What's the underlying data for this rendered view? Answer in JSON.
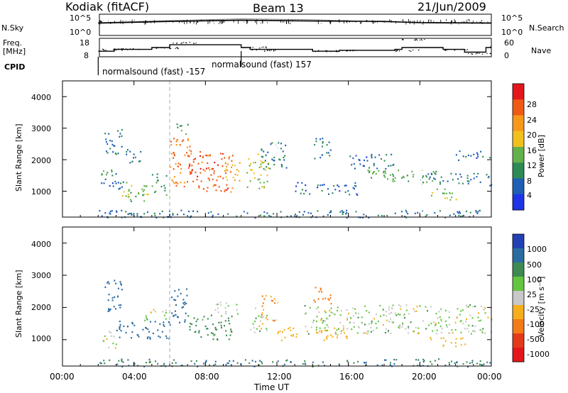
{
  "header": {
    "station": "Kodiak (fitACF)",
    "beam": "Beam 13",
    "date": "21/Jun/2009"
  },
  "summary_panels": {
    "nsky": {
      "label": "N.Sky",
      "ticks": [
        "10^5",
        "10^0"
      ],
      "right_label": "N.Search",
      "right_ticks": [
        "10^5",
        "10^0"
      ]
    },
    "freq": {
      "label_line1": "Freq.",
      "label_line2": "[MHz]",
      "ticks": [
        "18",
        "8"
      ],
      "right_label": "Nave",
      "right_ticks": [
        "60",
        "0"
      ]
    },
    "cpid": {
      "label": "CPID",
      "modes": [
        {
          "name": "normalsound (fast) -157",
          "start_hour": 2.0
        },
        {
          "name": "normalsound (fast) 157",
          "start_hour": 10.0
        }
      ]
    }
  },
  "axes": {
    "x_label": "Time UT",
    "x_ticks": [
      "00:00",
      "04:00",
      "08:00",
      "12:00",
      "16:00",
      "20:00",
      "00:00"
    ],
    "x_range_hours": [
      0,
      24
    ],
    "y_label": "Slant Range [km]",
    "y_ticks": [
      "1000",
      "2000",
      "3000",
      "4000"
    ],
    "y_range_km": [
      180,
      4500
    ],
    "marker_hour": 6.0
  },
  "colorbars": {
    "power": {
      "label": "Power [dB]",
      "ticks": [
        "4",
        "8",
        "12",
        "16",
        "20",
        "24",
        "28"
      ],
      "colors": [
        "#1e34e6",
        "#1e5fb5",
        "#2c8a55",
        "#63b14b",
        "#f2c01c",
        "#f7981a",
        "#f05a14",
        "#e3171b"
      ]
    },
    "velocity": {
      "label": "Velocity [m s⁻¹]",
      "ticks": [
        "1000",
        "500",
        "100",
        "25",
        "-25",
        "-100",
        "-500",
        "-1000"
      ],
      "colors": [
        "#2340b5",
        "#2a6ca2",
        "#3f8a52",
        "#63c640",
        "#c8c8c8",
        "#f6ae1c",
        "#f37b17",
        "#e43a1a",
        "#e3171b"
      ]
    }
  },
  "chart_data": [
    {
      "type": "line",
      "title": "N.Sky / N.Search",
      "x_hours": [
        2.0,
        6.0,
        10.0,
        14.0,
        18.0,
        20.0,
        24.0
      ],
      "nsky_log10": [
        2.9,
        3.3,
        3.6,
        3.4,
        3.3,
        3.0,
        2.9
      ],
      "nsearch_log10": [
        3.0,
        3.5,
        3.9,
        3.7,
        3.2,
        3.1,
        3.0
      ]
    },
    {
      "type": "line",
      "title": "Freq. / Nave",
      "x_hours": [
        2.0,
        2.9,
        5.0,
        6.0,
        10.0,
        10.5,
        14.0,
        15.5,
        18.6,
        19.0,
        21.3,
        22.5,
        23.7,
        24.0
      ],
      "freq_mhz": [
        11,
        12,
        13,
        14.5,
        13,
        12,
        11,
        11.5,
        12,
        13,
        12,
        10.5,
        13,
        13
      ],
      "nave": [
        23,
        25,
        28,
        45,
        30,
        20,
        18,
        20,
        20,
        55,
        22,
        10,
        30,
        30
      ]
    },
    {
      "type": "heatmap",
      "title": "Power [dB]",
      "x_range_hours": [
        2.0,
        24.0
      ],
      "y_range_km": [
        180,
        3500
      ],
      "patches": [
        {
          "t0": 2.0,
          "t1": 24.0,
          "r0": 180,
          "r1": 420,
          "value": 9
        },
        {
          "t0": 2.3,
          "t1": 3.3,
          "r0": 2100,
          "r1": 3000,
          "value": 10
        },
        {
          "t0": 2.1,
          "t1": 3.0,
          "r0": 1500,
          "r1": 1900,
          "value": 12
        },
        {
          "t0": 2.1,
          "t1": 3.5,
          "r0": 1000,
          "r1": 1400,
          "value": 8
        },
        {
          "t0": 3.2,
          "t1": 5.0,
          "r0": 700,
          "r1": 1300,
          "value": 16
        },
        {
          "t0": 5.0,
          "t1": 5.8,
          "r0": 900,
          "r1": 1600,
          "value": 14
        },
        {
          "t0": 3.5,
          "t1": 4.5,
          "r0": 1900,
          "r1": 2400,
          "value": 10
        },
        {
          "t0": 6.0,
          "t1": 7.2,
          "r0": 1100,
          "r1": 2700,
          "value": 26
        },
        {
          "t0": 7.0,
          "t1": 9.5,
          "r0": 1000,
          "r1": 2300,
          "value": 28
        },
        {
          "t0": 9.0,
          "t1": 10.0,
          "r0": 1300,
          "r1": 2000,
          "value": 22
        },
        {
          "t0": 6.3,
          "t1": 7.0,
          "r0": 2800,
          "r1": 3200,
          "value": 14
        },
        {
          "t0": 10.3,
          "t1": 11.5,
          "r0": 1100,
          "r1": 2200,
          "value": 18
        },
        {
          "t0": 11.0,
          "t1": 12.5,
          "r0": 1700,
          "r1": 2600,
          "value": 10
        },
        {
          "t0": 13.0,
          "t1": 16.5,
          "r0": 900,
          "r1": 1300,
          "value": 8
        },
        {
          "t0": 14.0,
          "t1": 15.0,
          "r0": 2000,
          "r1": 2700,
          "value": 10
        },
        {
          "t0": 16.0,
          "t1": 18.5,
          "r0": 1700,
          "r1": 2200,
          "value": 8
        },
        {
          "t0": 17.0,
          "t1": 21.0,
          "r0": 1300,
          "r1": 1700,
          "value": 14
        },
        {
          "t0": 20.0,
          "t1": 24.0,
          "r0": 1200,
          "r1": 1600,
          "value": 10
        },
        {
          "t0": 20.5,
          "t1": 22.0,
          "r0": 700,
          "r1": 1100,
          "value": 16
        },
        {
          "t0": 22.0,
          "t1": 24.0,
          "r0": 2000,
          "r1": 2300,
          "value": 8
        }
      ]
    },
    {
      "type": "heatmap",
      "title": "Velocity [m s⁻¹]",
      "x_range_hours": [
        2.0,
        24.0
      ],
      "y_range_km": [
        180,
        3500
      ],
      "patches": [
        {
          "t0": 2.0,
          "t1": 24.0,
          "r0": 180,
          "r1": 420,
          "value": 100
        },
        {
          "t0": 2.2,
          "t1": 3.3,
          "r0": 1900,
          "r1": 2900,
          "value": 300
        },
        {
          "t0": 2.2,
          "t1": 3.0,
          "r0": 700,
          "r1": 1300,
          "value": 0
        },
        {
          "t0": 3.0,
          "t1": 6.0,
          "r0": 1000,
          "r1": 1600,
          "value": 300
        },
        {
          "t0": 4.5,
          "t1": 5.8,
          "r0": 1600,
          "r1": 2000,
          "value": 0
        },
        {
          "t0": 6.0,
          "t1": 7.0,
          "r0": 1500,
          "r1": 2600,
          "value": 300
        },
        {
          "t0": 7.0,
          "t1": 9.5,
          "r0": 1000,
          "r1": 1800,
          "value": 50
        },
        {
          "t0": 8.5,
          "t1": 10.0,
          "r0": 1800,
          "r1": 2200,
          "value": 0
        },
        {
          "t0": 10.5,
          "t1": 11.5,
          "r0": 1200,
          "r1": 2000,
          "value": 0
        },
        {
          "t0": 11.0,
          "t1": 12.0,
          "r0": 1600,
          "r1": 2400,
          "value": -100
        },
        {
          "t0": 12.0,
          "t1": 16.0,
          "r0": 1000,
          "r1": 1400,
          "value": -60
        },
        {
          "t0": 14.0,
          "t1": 15.0,
          "r0": 2100,
          "r1": 2700,
          "value": -300
        },
        {
          "t0": 13.5,
          "t1": 24.0,
          "r0": 1200,
          "r1": 2100,
          "value": 0
        },
        {
          "t0": 20.5,
          "t1": 22.5,
          "r0": 800,
          "r1": 1100,
          "value": -60
        }
      ]
    }
  ]
}
